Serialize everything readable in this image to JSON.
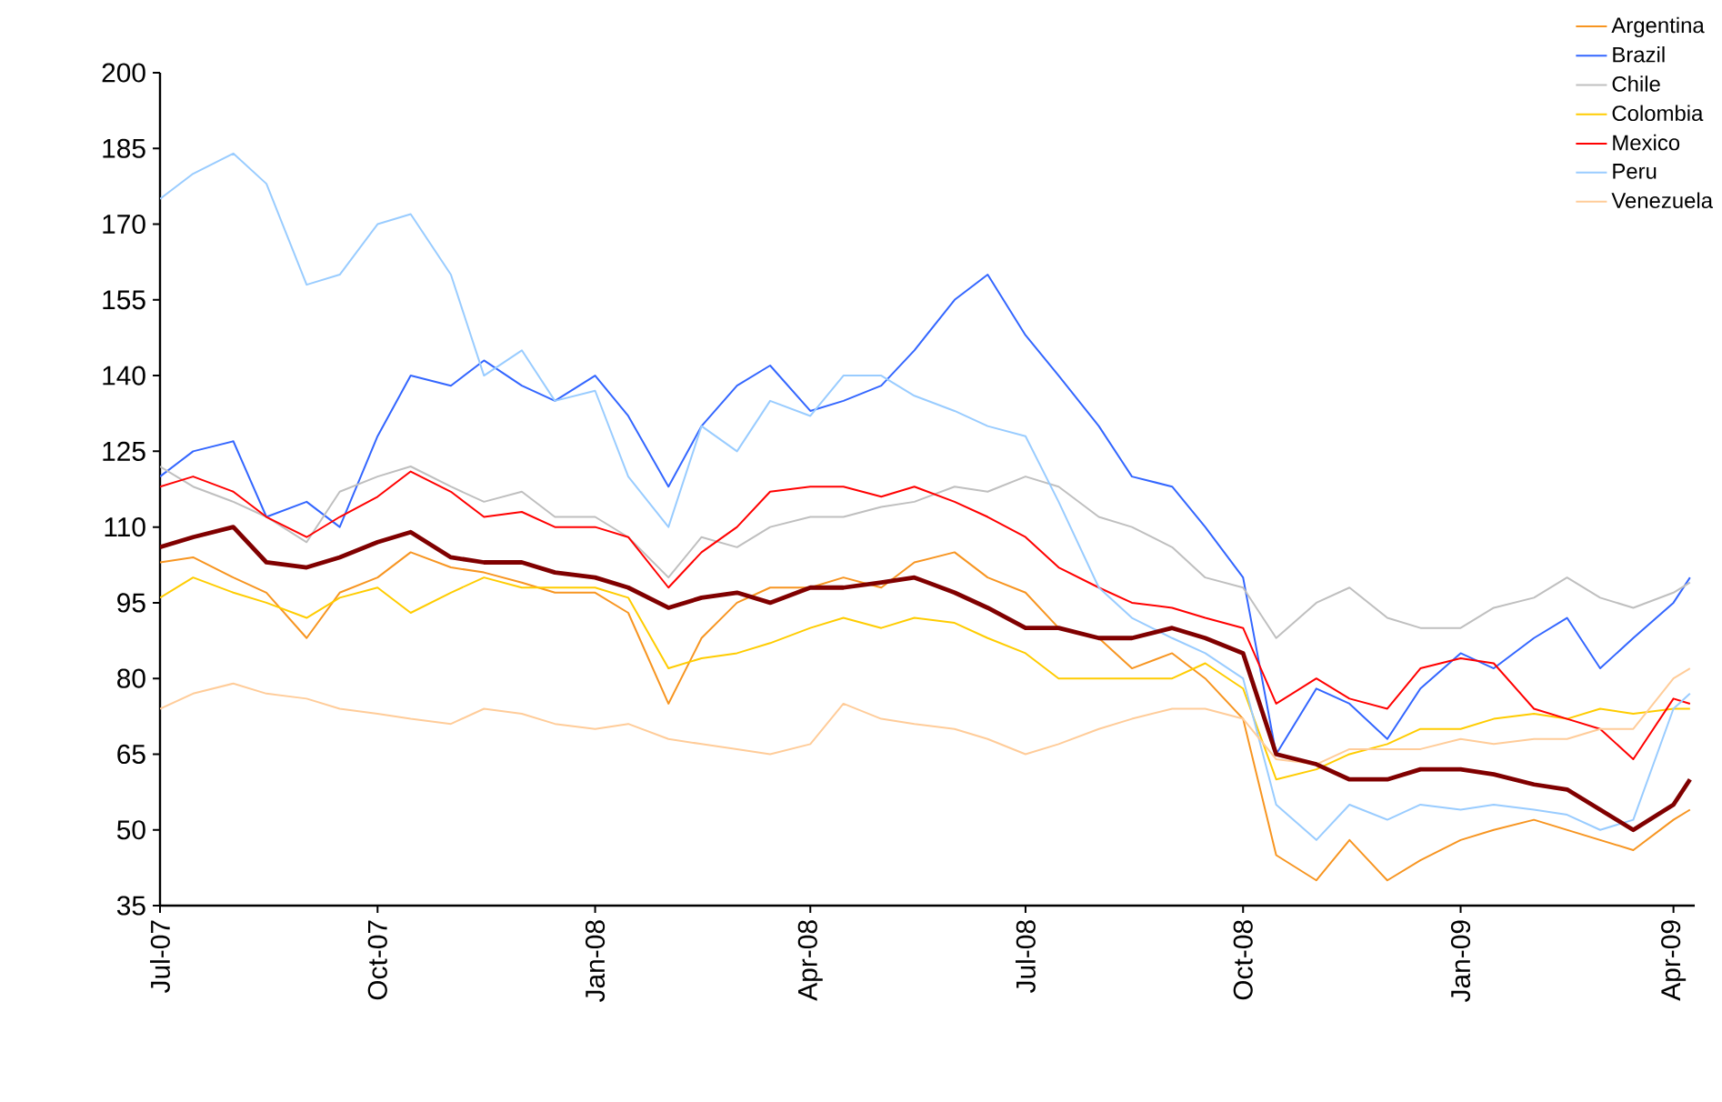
{
  "chart_data": {
    "type": "line",
    "x": [
      "2007-07-01",
      "2007-07-15",
      "2007-08-01",
      "2007-08-15",
      "2007-09-01",
      "2007-09-15",
      "2007-10-01",
      "2007-10-15",
      "2007-11-01",
      "2007-11-15",
      "2007-12-01",
      "2007-12-15",
      "2008-01-01",
      "2008-01-15",
      "2008-02-01",
      "2008-02-15",
      "2008-03-01",
      "2008-03-15",
      "2008-04-01",
      "2008-04-15",
      "2008-05-01",
      "2008-05-15",
      "2008-06-01",
      "2008-06-15",
      "2008-07-01",
      "2008-07-15",
      "2008-08-01",
      "2008-08-15",
      "2008-09-01",
      "2008-09-15",
      "2008-10-01",
      "2008-10-15",
      "2008-11-01",
      "2008-11-15",
      "2008-12-01",
      "2008-12-15",
      "2009-01-01",
      "2009-01-15",
      "2009-02-01",
      "2009-02-15",
      "2009-03-01",
      "2009-03-15",
      "2009-04-01",
      "2009-04-08"
    ],
    "series": [
      {
        "name": "Argentina",
        "color": "#f79521",
        "values": [
          103,
          104,
          100,
          97,
          88,
          97,
          100,
          105,
          102,
          101,
          99,
          97,
          97,
          93,
          75,
          88,
          95,
          98,
          98,
          100,
          98,
          103,
          105,
          100,
          97,
          90,
          88,
          82,
          85,
          80,
          72,
          45,
          40,
          48,
          40,
          44,
          48,
          50,
          52,
          50,
          48,
          46,
          52,
          54
        ]
      },
      {
        "name": "Brazil",
        "color": "#3366ff",
        "values": [
          120,
          125,
          127,
          112,
          115,
          110,
          128,
          140,
          138,
          143,
          138,
          135,
          140,
          132,
          118,
          130,
          138,
          142,
          133,
          135,
          138,
          145,
          155,
          160,
          148,
          140,
          130,
          120,
          118,
          110,
          100,
          65,
          78,
          75,
          68,
          78,
          85,
          82,
          88,
          92,
          82,
          88,
          95,
          100
        ]
      },
      {
        "name": "Chile",
        "color": "#bfbfbf",
        "values": [
          122,
          118,
          115,
          112,
          107,
          117,
          120,
          122,
          118,
          115,
          117,
          112,
          112,
          108,
          100,
          108,
          106,
          110,
          112,
          112,
          114,
          115,
          118,
          117,
          120,
          118,
          112,
          110,
          106,
          100,
          98,
          88,
          95,
          98,
          92,
          90,
          90,
          94,
          96,
          100,
          96,
          94,
          97,
          99
        ]
      },
      {
        "name": "Colombia",
        "color": "#ffcc00",
        "values": [
          96,
          100,
          97,
          95,
          92,
          96,
          98,
          93,
          97,
          100,
          98,
          98,
          98,
          96,
          82,
          84,
          85,
          87,
          90,
          92,
          90,
          92,
          91,
          88,
          85,
          80,
          80,
          80,
          80,
          83,
          78,
          60,
          62,
          65,
          67,
          70,
          70,
          72,
          73,
          72,
          74,
          73,
          74,
          74
        ]
      },
      {
        "name": "Mexico",
        "color": "#ff0000",
        "values": [
          118,
          120,
          117,
          112,
          108,
          112,
          116,
          121,
          117,
          112,
          113,
          110,
          110,
          108,
          98,
          105,
          110,
          117,
          118,
          118,
          116,
          118,
          115,
          112,
          108,
          102,
          98,
          95,
          94,
          92,
          90,
          75,
          80,
          76,
          74,
          82,
          84,
          83,
          74,
          72,
          70,
          64,
          76,
          75
        ]
      },
      {
        "name": "Peru",
        "color": "#99ccff",
        "values": [
          175,
          180,
          184,
          178,
          158,
          160,
          170,
          172,
          160,
          140,
          145,
          135,
          137,
          120,
          110,
          130,
          125,
          135,
          132,
          140,
          140,
          136,
          133,
          130,
          128,
          115,
          98,
          92,
          88,
          85,
          80,
          55,
          48,
          55,
          52,
          55,
          54,
          55,
          54,
          53,
          50,
          52,
          74,
          77
        ]
      },
      {
        "name": "Venezuela",
        "color": "#ffcc99",
        "values": [
          74,
          77,
          79,
          77,
          76,
          74,
          73,
          72,
          71,
          74,
          73,
          71,
          70,
          71,
          68,
          67,
          66,
          65,
          67,
          75,
          72,
          71,
          70,
          68,
          65,
          67,
          70,
          72,
          74,
          74,
          72,
          64,
          63,
          66,
          66,
          66,
          68,
          67,
          68,
          68,
          70,
          70,
          80,
          82
        ]
      },
      {
        "color": "#800000",
        "values": [
          106,
          108,
          110,
          103,
          102,
          104,
          107,
          109,
          104,
          103,
          103,
          101,
          100,
          98,
          94,
          96,
          97,
          95,
          98,
          98,
          99,
          100,
          97,
          94,
          90,
          90,
          88,
          88,
          90,
          88,
          85,
          65,
          63,
          60,
          60,
          62,
          62,
          61,
          59,
          58,
          54,
          50,
          55,
          60
        ]
      }
    ],
    "xlim": [
      "2007-07-01",
      "2009-04-10"
    ],
    "xticks": [
      {
        "value": "2007-07-01",
        "label": "Jul-07"
      },
      {
        "value": "2007-10-01",
        "label": "Oct-07"
      },
      {
        "value": "2008-01-01",
        "label": "Jan-08"
      },
      {
        "value": "2008-04-01",
        "label": "Apr-08"
      },
      {
        "value": "2008-07-01",
        "label": "Jul-08"
      },
      {
        "value": "2008-10-01",
        "label": "Oct-08"
      },
      {
        "value": "2009-01-01",
        "label": "Jan-09"
      },
      {
        "value": "2009-04-01",
        "label": "Apr-09"
      }
    ],
    "ylim": [
      35,
      200
    ],
    "yticks": [
      35,
      50,
      65,
      80,
      95,
      110,
      125,
      140,
      155,
      170,
      185,
      200
    ],
    "legend": "top right",
    "marker": "none",
    "line_style": "solid"
  }
}
